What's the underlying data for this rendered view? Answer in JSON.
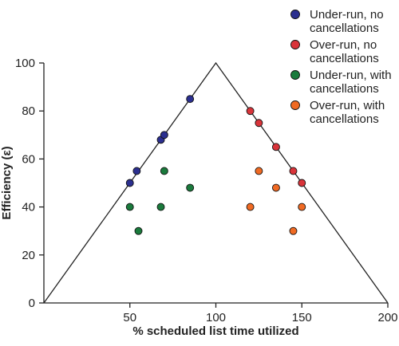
{
  "chart_data": {
    "type": "scatter",
    "xlabel": "% scheduled list time utilized",
    "ylabel": "Efficiency (ε)",
    "xlim": [
      0,
      200
    ],
    "ylim": [
      0,
      100
    ],
    "xticks": [
      50,
      100,
      150,
      200
    ],
    "yticks": [
      0,
      20,
      40,
      60,
      80,
      100
    ],
    "grid": false,
    "legend_position": "top-right",
    "boundary": [
      [
        0,
        0
      ],
      [
        100,
        100
      ],
      [
        200,
        0
      ]
    ],
    "series": [
      {
        "name": "Under-run, no cancellations",
        "name_lines": [
          "Under-run, no",
          "cancellations"
        ],
        "color": "#2b2f8f",
        "points": [
          [
            50,
            50
          ],
          [
            54,
            55
          ],
          [
            68,
            68
          ],
          [
            70,
            70
          ],
          [
            85,
            85
          ]
        ]
      },
      {
        "name": "Over-run, no cancellations",
        "name_lines": [
          "Over-run, no",
          "cancellations"
        ],
        "color": "#d9343a",
        "points": [
          [
            120,
            80
          ],
          [
            125,
            75
          ],
          [
            135,
            65
          ],
          [
            145,
            55
          ],
          [
            150,
            50
          ]
        ]
      },
      {
        "name": "Under-run, with cancellations",
        "name_lines": [
          "Under-run, with",
          "cancellations"
        ],
        "color": "#1a7a3c",
        "points": [
          [
            50,
            40
          ],
          [
            55,
            30
          ],
          [
            68,
            40
          ],
          [
            70,
            55
          ],
          [
            85,
            48
          ]
        ]
      },
      {
        "name": "Over-run, with cancellations",
        "name_lines": [
          "Over-run, with",
          "cancellations"
        ],
        "color": "#f06a23",
        "points": [
          [
            120,
            40
          ],
          [
            125,
            55
          ],
          [
            135,
            48
          ],
          [
            145,
            30
          ],
          [
            150,
            40
          ]
        ]
      }
    ]
  }
}
